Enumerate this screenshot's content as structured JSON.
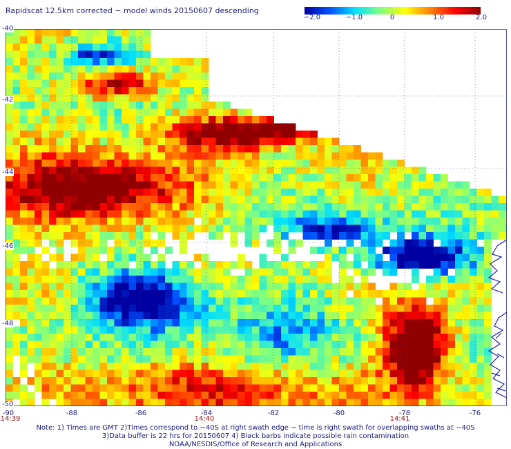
{
  "title": "Rapidscat 12.5km corrected − model winds 20150607 descending",
  "colorbar": {
    "labels": [
      "−2.0",
      "−1.0",
      "0",
      "1.0",
      "2.0"
    ],
    "range": [
      -2.0,
      2.0
    ],
    "stops": [
      "#0000a0",
      "#0050ff",
      "#00e0ff",
      "#80ff80",
      "#ffff00",
      "#ff8000",
      "#ff0000",
      "#900000"
    ]
  },
  "map": {
    "lat_labels": [
      "-40",
      "-42",
      "-44",
      "-46",
      "-48",
      "-50"
    ],
    "lon_labels": [
      "-90",
      "-88",
      "-86",
      "-84",
      "-82",
      "-80",
      "-78",
      "-76"
    ],
    "time_labels": [
      "14:39",
      "14:40",
      "14:41"
    ],
    "lat_range": [
      -50,
      -40
    ],
    "lon_range": [
      -90,
      -75.6
    ],
    "no_data_color": "#ffffff",
    "grid_color": "#3030a0",
    "coast_color": "#2020b0"
  },
  "notes": [
    "Note: 1) Times are GMT 2)Times correspond to −40S at right swath edge − time is right swath for overlapping swaths at −40S",
    "3)Data buffer is 22 hrs for 20150607 4) Black barbs indicate possible rain contamination",
    "NOAA/NESDIS/Office of Research and Applications"
  ]
}
